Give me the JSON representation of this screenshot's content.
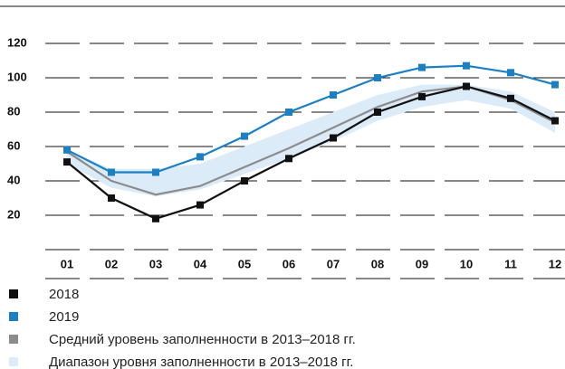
{
  "chart_data": {
    "type": "line",
    "categories": [
      "01",
      "02",
      "03",
      "04",
      "05",
      "06",
      "07",
      "08",
      "09",
      "10",
      "11",
      "12"
    ],
    "series": [
      {
        "name": "2018",
        "color": "#111111",
        "values": [
          51,
          30,
          18,
          26,
          40,
          53,
          65,
          80,
          89,
          95,
          88,
          75
        ]
      },
      {
        "name": "2019",
        "color": "#1b7fc4",
        "values": [
          58,
          45,
          45,
          54,
          66,
          80,
          90,
          100,
          106,
          107,
          103,
          96
        ]
      },
      {
        "name": "Средний уровень заполненности в 2013–2018 гг.",
        "color": "#8c8c8c",
        "values": [
          57,
          40,
          32,
          37,
          48,
          59,
          71,
          83,
          92,
          95,
          87,
          74
        ]
      }
    ],
    "range": {
      "name": "Диапазон уровня заполненности в 2013–2018 гг.",
      "color": "#dcebf8",
      "low": [
        50,
        36,
        31,
        35,
        44,
        53,
        63,
        75,
        83,
        87,
        82,
        68
      ],
      "high": [
        58,
        47,
        47,
        50,
        60,
        70,
        80,
        90,
        96,
        96,
        92,
        80
      ]
    },
    "ylim": [
      0,
      120
    ],
    "yticks": [
      20,
      40,
      60,
      80,
      100,
      120
    ],
    "grid": true
  }
}
